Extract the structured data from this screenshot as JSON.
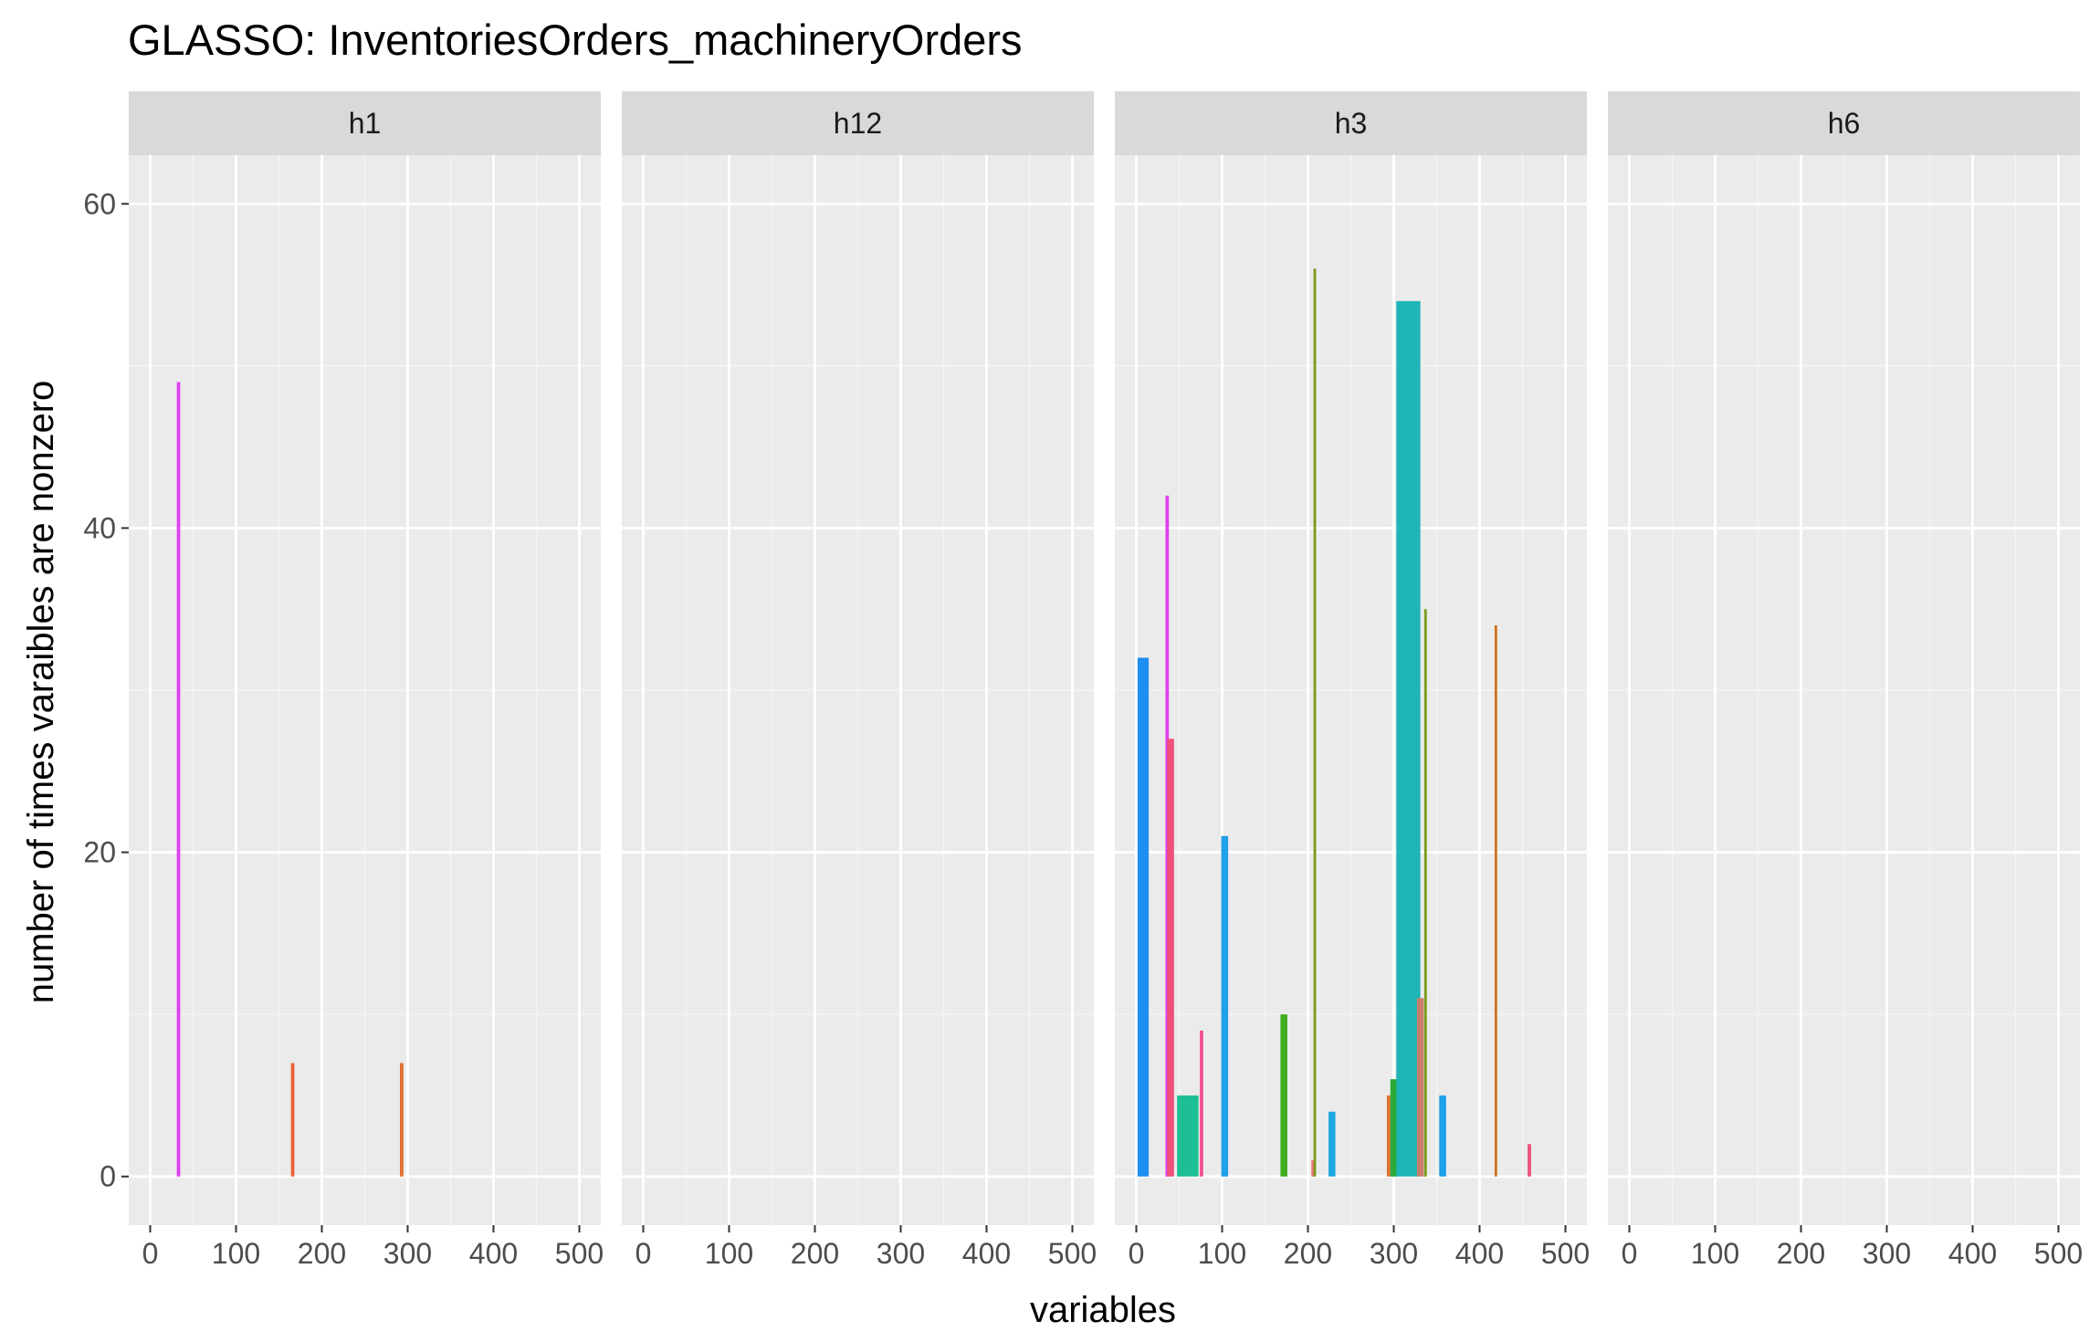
{
  "chart_data": {
    "type": "bar",
    "title": "GLASSO: InventoriesOrders_machineryOrders",
    "xlabel": "variables",
    "ylabel": "number of times varaibles are nonzero",
    "xlim": [
      -25,
      525
    ],
    "ylim": [
      -3,
      63
    ],
    "x_ticks": [
      0,
      100,
      200,
      300,
      400,
      500
    ],
    "y_ticks": [
      0,
      20,
      40,
      60
    ],
    "grid": true,
    "legend": "none",
    "facets": [
      {
        "label": "h1",
        "bars": [
          {
            "x": 33,
            "y": 49,
            "width": 4,
            "color": "#E040F0"
          },
          {
            "x": 166,
            "y": 7,
            "width": 4,
            "color": "#E8643A"
          },
          {
            "x": 293,
            "y": 7,
            "width": 4,
            "color": "#E0702F"
          }
        ]
      },
      {
        "label": "h12",
        "bars": []
      },
      {
        "label": "h3",
        "bars": [
          {
            "x": 8,
            "y": 32,
            "width": 13,
            "color": "#1E8EF0"
          },
          {
            "x": 36,
            "y": 42,
            "width": 4,
            "color": "#E040F0"
          },
          {
            "x": 40,
            "y": 27,
            "width": 8,
            "color": "#F0507A"
          },
          {
            "x": 60,
            "y": 5,
            "width": 25,
            "color": "#1FBF95"
          },
          {
            "x": 76,
            "y": 9,
            "width": 4,
            "color": "#F0508C"
          },
          {
            "x": 103,
            "y": 21,
            "width": 8,
            "color": "#1FA0E8"
          },
          {
            "x": 172,
            "y": 10,
            "width": 8,
            "color": "#3DAE1F"
          },
          {
            "x": 206,
            "y": 1,
            "width": 4,
            "color": "#F0707A"
          },
          {
            "x": 208,
            "y": 56,
            "width": 3,
            "color": "#7A9A1A"
          },
          {
            "x": 228,
            "y": 4,
            "width": 8,
            "color": "#1FA8E0"
          },
          {
            "x": 294,
            "y": 5,
            "width": 4,
            "color": "#E0702F"
          },
          {
            "x": 300,
            "y": 6,
            "width": 8,
            "color": "#2BAA3A"
          },
          {
            "x": 317,
            "y": 54,
            "width": 28,
            "color": "#1FB4B8"
          },
          {
            "x": 331,
            "y": 11,
            "width": 8,
            "color": "#C97E6A"
          },
          {
            "x": 337,
            "y": 35,
            "width": 3,
            "color": "#7A9A1A"
          },
          {
            "x": 357,
            "y": 5,
            "width": 8,
            "color": "#1FA0E8"
          },
          {
            "x": 419,
            "y": 34,
            "width": 3,
            "color": "#D2701F"
          },
          {
            "x": 458,
            "y": 2,
            "width": 4,
            "color": "#F0507A"
          }
        ]
      },
      {
        "label": "h6",
        "bars": []
      }
    ]
  }
}
